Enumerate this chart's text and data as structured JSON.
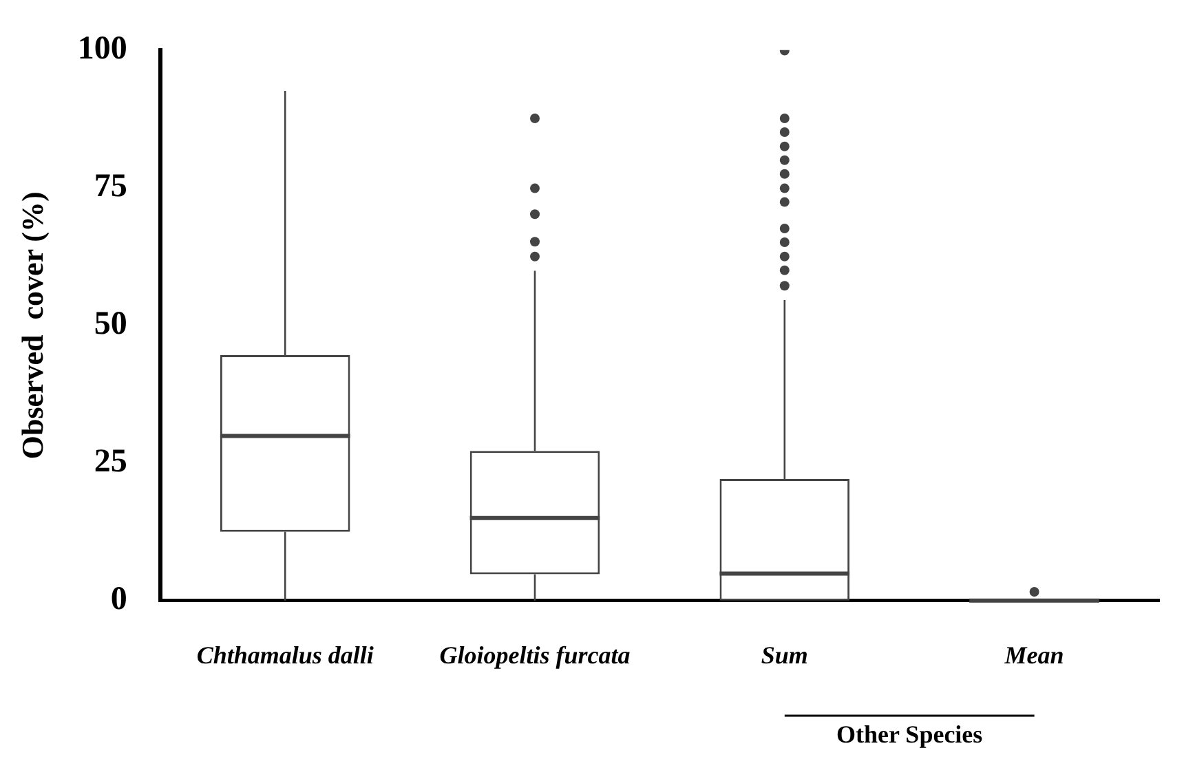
{
  "chart_data": {
    "type": "box",
    "ylabel": "Observed  cover (%)",
    "categories": [
      "Chthamalus dalli",
      "Gloiopeltis furcata",
      "Sum",
      "Mean"
    ],
    "boxes": [
      {
        "low": 0,
        "q1": 12.5,
        "median": 29.9,
        "q3": 44.6,
        "high": 92.6
      },
      {
        "low": 0,
        "q1": 4.8,
        "median": 15,
        "q3": 27.2,
        "high": 59.9,
        "outliers": [
          62.5,
          65.2,
          70.2,
          74.9,
          87.6
        ]
      },
      {
        "low": 0,
        "q1": 0,
        "median": 4.9,
        "q3": 22.1,
        "high": 54.6,
        "outliers": [
          57.2,
          60,
          62.5,
          65.1,
          67.6,
          72.4,
          74.9,
          77.5,
          80,
          82.5,
          85.1,
          87.6,
          99.9
        ]
      },
      {
        "low": 0,
        "q1": 0,
        "median": 0,
        "q3": 0,
        "high": 0,
        "outliers": [
          1.6
        ]
      }
    ],
    "color": "#444444",
    "ylim": [
      0,
      100
    ],
    "yticks": [
      0,
      25,
      50,
      75,
      100
    ],
    "grid": false,
    "legend": false,
    "annotations": [
      "Other Species"
    ]
  }
}
